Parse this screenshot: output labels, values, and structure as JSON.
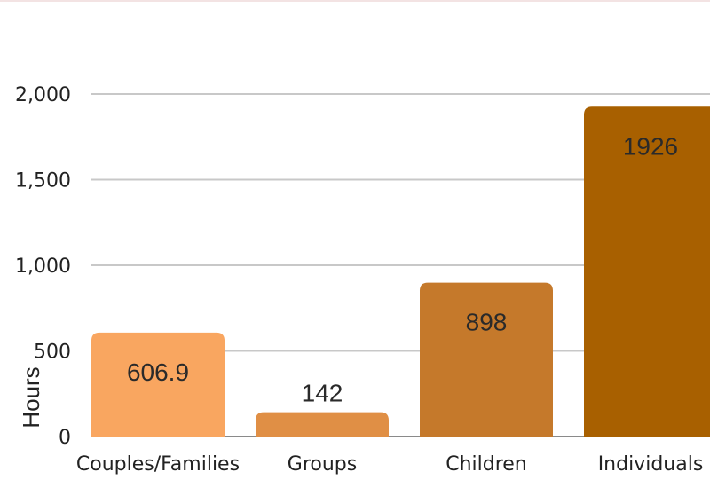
{
  "chart_data": {
    "type": "bar",
    "title": "",
    "xlabel": "",
    "ylabel": "Hours",
    "categories": [
      "Couples/Families",
      "Groups",
      "Children",
      "Individuals"
    ],
    "values": [
      606.9,
      142,
      898,
      1926
    ],
    "data_labels": [
      "606.9",
      "142",
      "898",
      "1926"
    ],
    "bar_colors": [
      "#f9a660",
      "#e08f45",
      "#c5792b",
      "#a86000"
    ],
    "label_colors": [
      "#2a2a2a",
      "#2a2a2a",
      "#2a2a2a",
      "#2a2a2a"
    ],
    "ylim": [
      0,
      2000
    ],
    "yticks": [
      0,
      500,
      1000,
      1500,
      2000
    ],
    "ytick_labels": [
      "0",
      "500",
      "1,000",
      "1,500",
      "2,000"
    ],
    "grid": true,
    "grid_color": "#c8c8c8",
    "baseline_color": "#8a8a8a",
    "legend": "none"
  }
}
